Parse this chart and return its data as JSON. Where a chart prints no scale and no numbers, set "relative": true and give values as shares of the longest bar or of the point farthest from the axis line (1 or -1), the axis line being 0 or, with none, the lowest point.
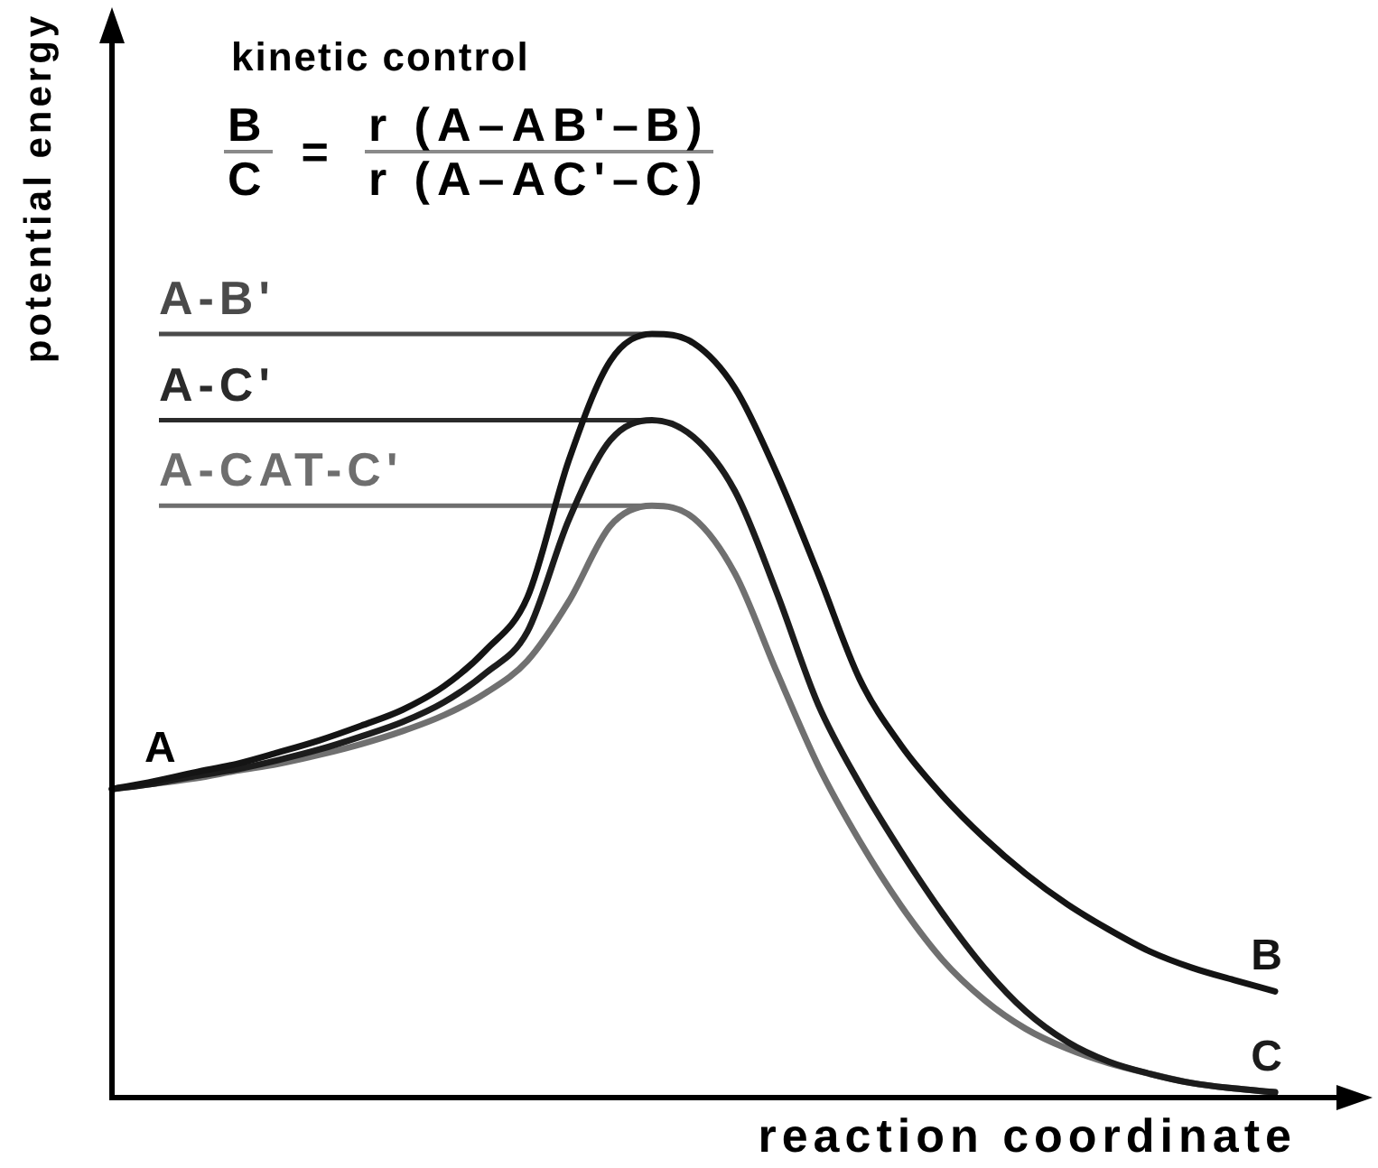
{
  "chart_data": {
    "type": "line",
    "title": "kinetic control",
    "xlabel": "reaction coordinate",
    "ylabel": "potential energy",
    "relative": true,
    "marker": "none",
    "categories": [
      null,
      null,
      null,
      null,
      null,
      null,
      null,
      null,
      null,
      null,
      null,
      null,
      null,
      null,
      null,
      null,
      null,
      null,
      null,
      null,
      null,
      null,
      null,
      null,
      null,
      null,
      null,
      null,
      null
    ],
    "series": [
      {
        "name": "B",
        "color": "#141414",
        "values": [
          0.404,
          0.414,
          0.426,
          0.437,
          0.452,
          0.468,
          0.487,
          0.508,
          0.539,
          0.586,
          0.655,
          0.835,
          0.965,
          1,
          0.988,
          0.929,
          0.818,
          0.686,
          0.548,
          0.461,
          0.395,
          0.34,
          0.293,
          0.253,
          0.22,
          0.191,
          0.17,
          0.154,
          0.139
        ]
      },
      {
        "name": "C",
        "color": "#1c1c1c",
        "values": [
          0.404,
          0.411,
          0.421,
          0.43,
          0.442,
          0.456,
          0.473,
          0.492,
          0.518,
          0.556,
          0.61,
          0.757,
          0.861,
          0.887,
          0.865,
          0.794,
          0.662,
          0.515,
          0.411,
          0.322,
          0.241,
          0.17,
          0.113,
          0.073,
          0.047,
          0.031,
          0.019,
          0.012,
          0.007
        ]
      },
      {
        "color": "#707070",
        "values": [
          0.404,
          0.411,
          0.418,
          0.428,
          0.437,
          0.449,
          0.463,
          0.48,
          0.501,
          0.53,
          0.572,
          0.65,
          0.749,
          0.775,
          0.759,
          0.686,
          0.558,
          0.435,
          0.336,
          0.251,
          0.18,
          0.128,
          0.09,
          0.064,
          0.045,
          0.031,
          0.019,
          0.012,
          0.007
        ]
      }
    ],
    "ref_lines": [
      {
        "axis": "y",
        "value": 1,
        "label": "A-B'",
        "color": "#4a4a4a"
      },
      {
        "axis": "y",
        "value": 0.887,
        "label": "A-C'",
        "color": "#2a2a2a"
      },
      {
        "axis": "y",
        "value": 0.775,
        "label": "A-CAT-C'",
        "color": "#6e6e6e"
      }
    ],
    "annotations": [
      {
        "text": "A",
        "y": 0.404
      },
      "B",
      "C",
      "=",
      "r (A–AB'–B)",
      "r (A–AC'–C)"
    ]
  }
}
